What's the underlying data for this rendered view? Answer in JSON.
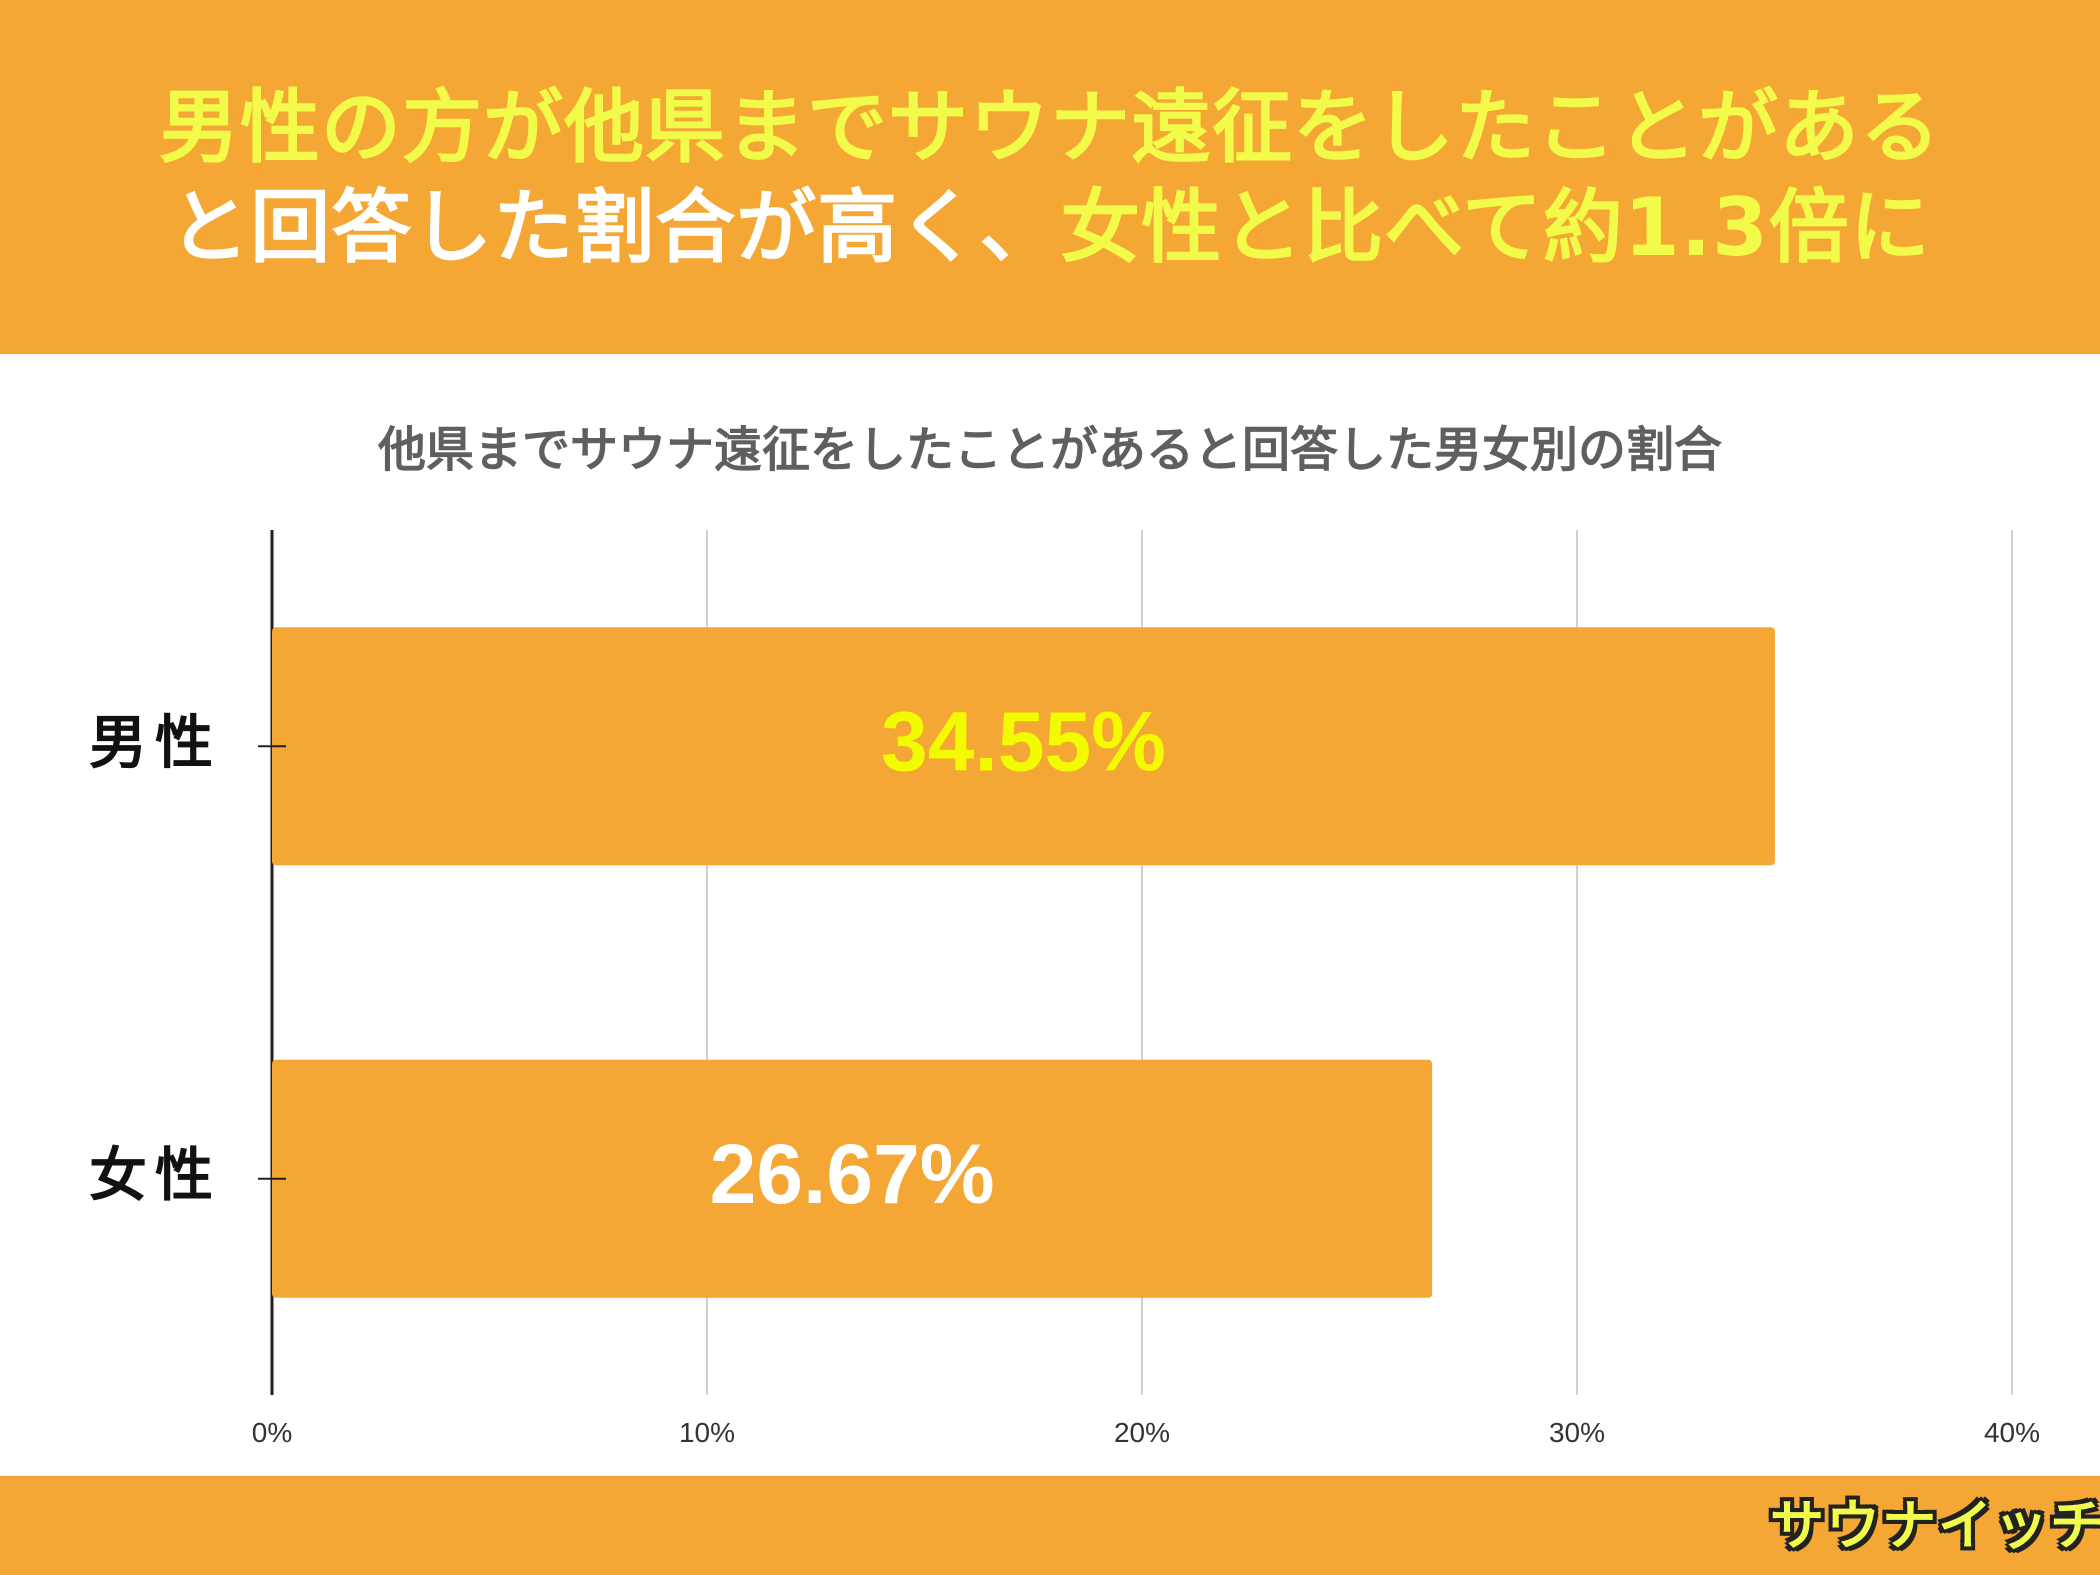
{
  "headline": {
    "line1": "男性の方が他県までサウナ遠征をしたことがある",
    "line2_white": "と回答した割合が高く、",
    "line2_yellow": "女性と比べて約1.3倍に"
  },
  "colors": {
    "header_bg": "#f4a734",
    "bar": "#f4a734",
    "headline_yellow": "#f3fb4a",
    "headline_white": "#ffffff",
    "male_label_color": "#f3fb00",
    "female_label_color": "#ffffff"
  },
  "chart_data": {
    "type": "bar",
    "orientation": "horizontal",
    "title": "他県までサウナ遠征をしたことがあると回答した男女別の割合",
    "categories": [
      "男性",
      "女性"
    ],
    "values": [
      34.55,
      26.67
    ],
    "value_labels": [
      "34.55%",
      "26.67%"
    ],
    "xlim": [
      0,
      40
    ],
    "xticks": [
      "0%",
      "10%",
      "20%",
      "30%",
      "40%"
    ],
    "xlabel": "",
    "ylabel": "",
    "grid": true
  },
  "logo": {
    "text": "サウナイッチ"
  }
}
